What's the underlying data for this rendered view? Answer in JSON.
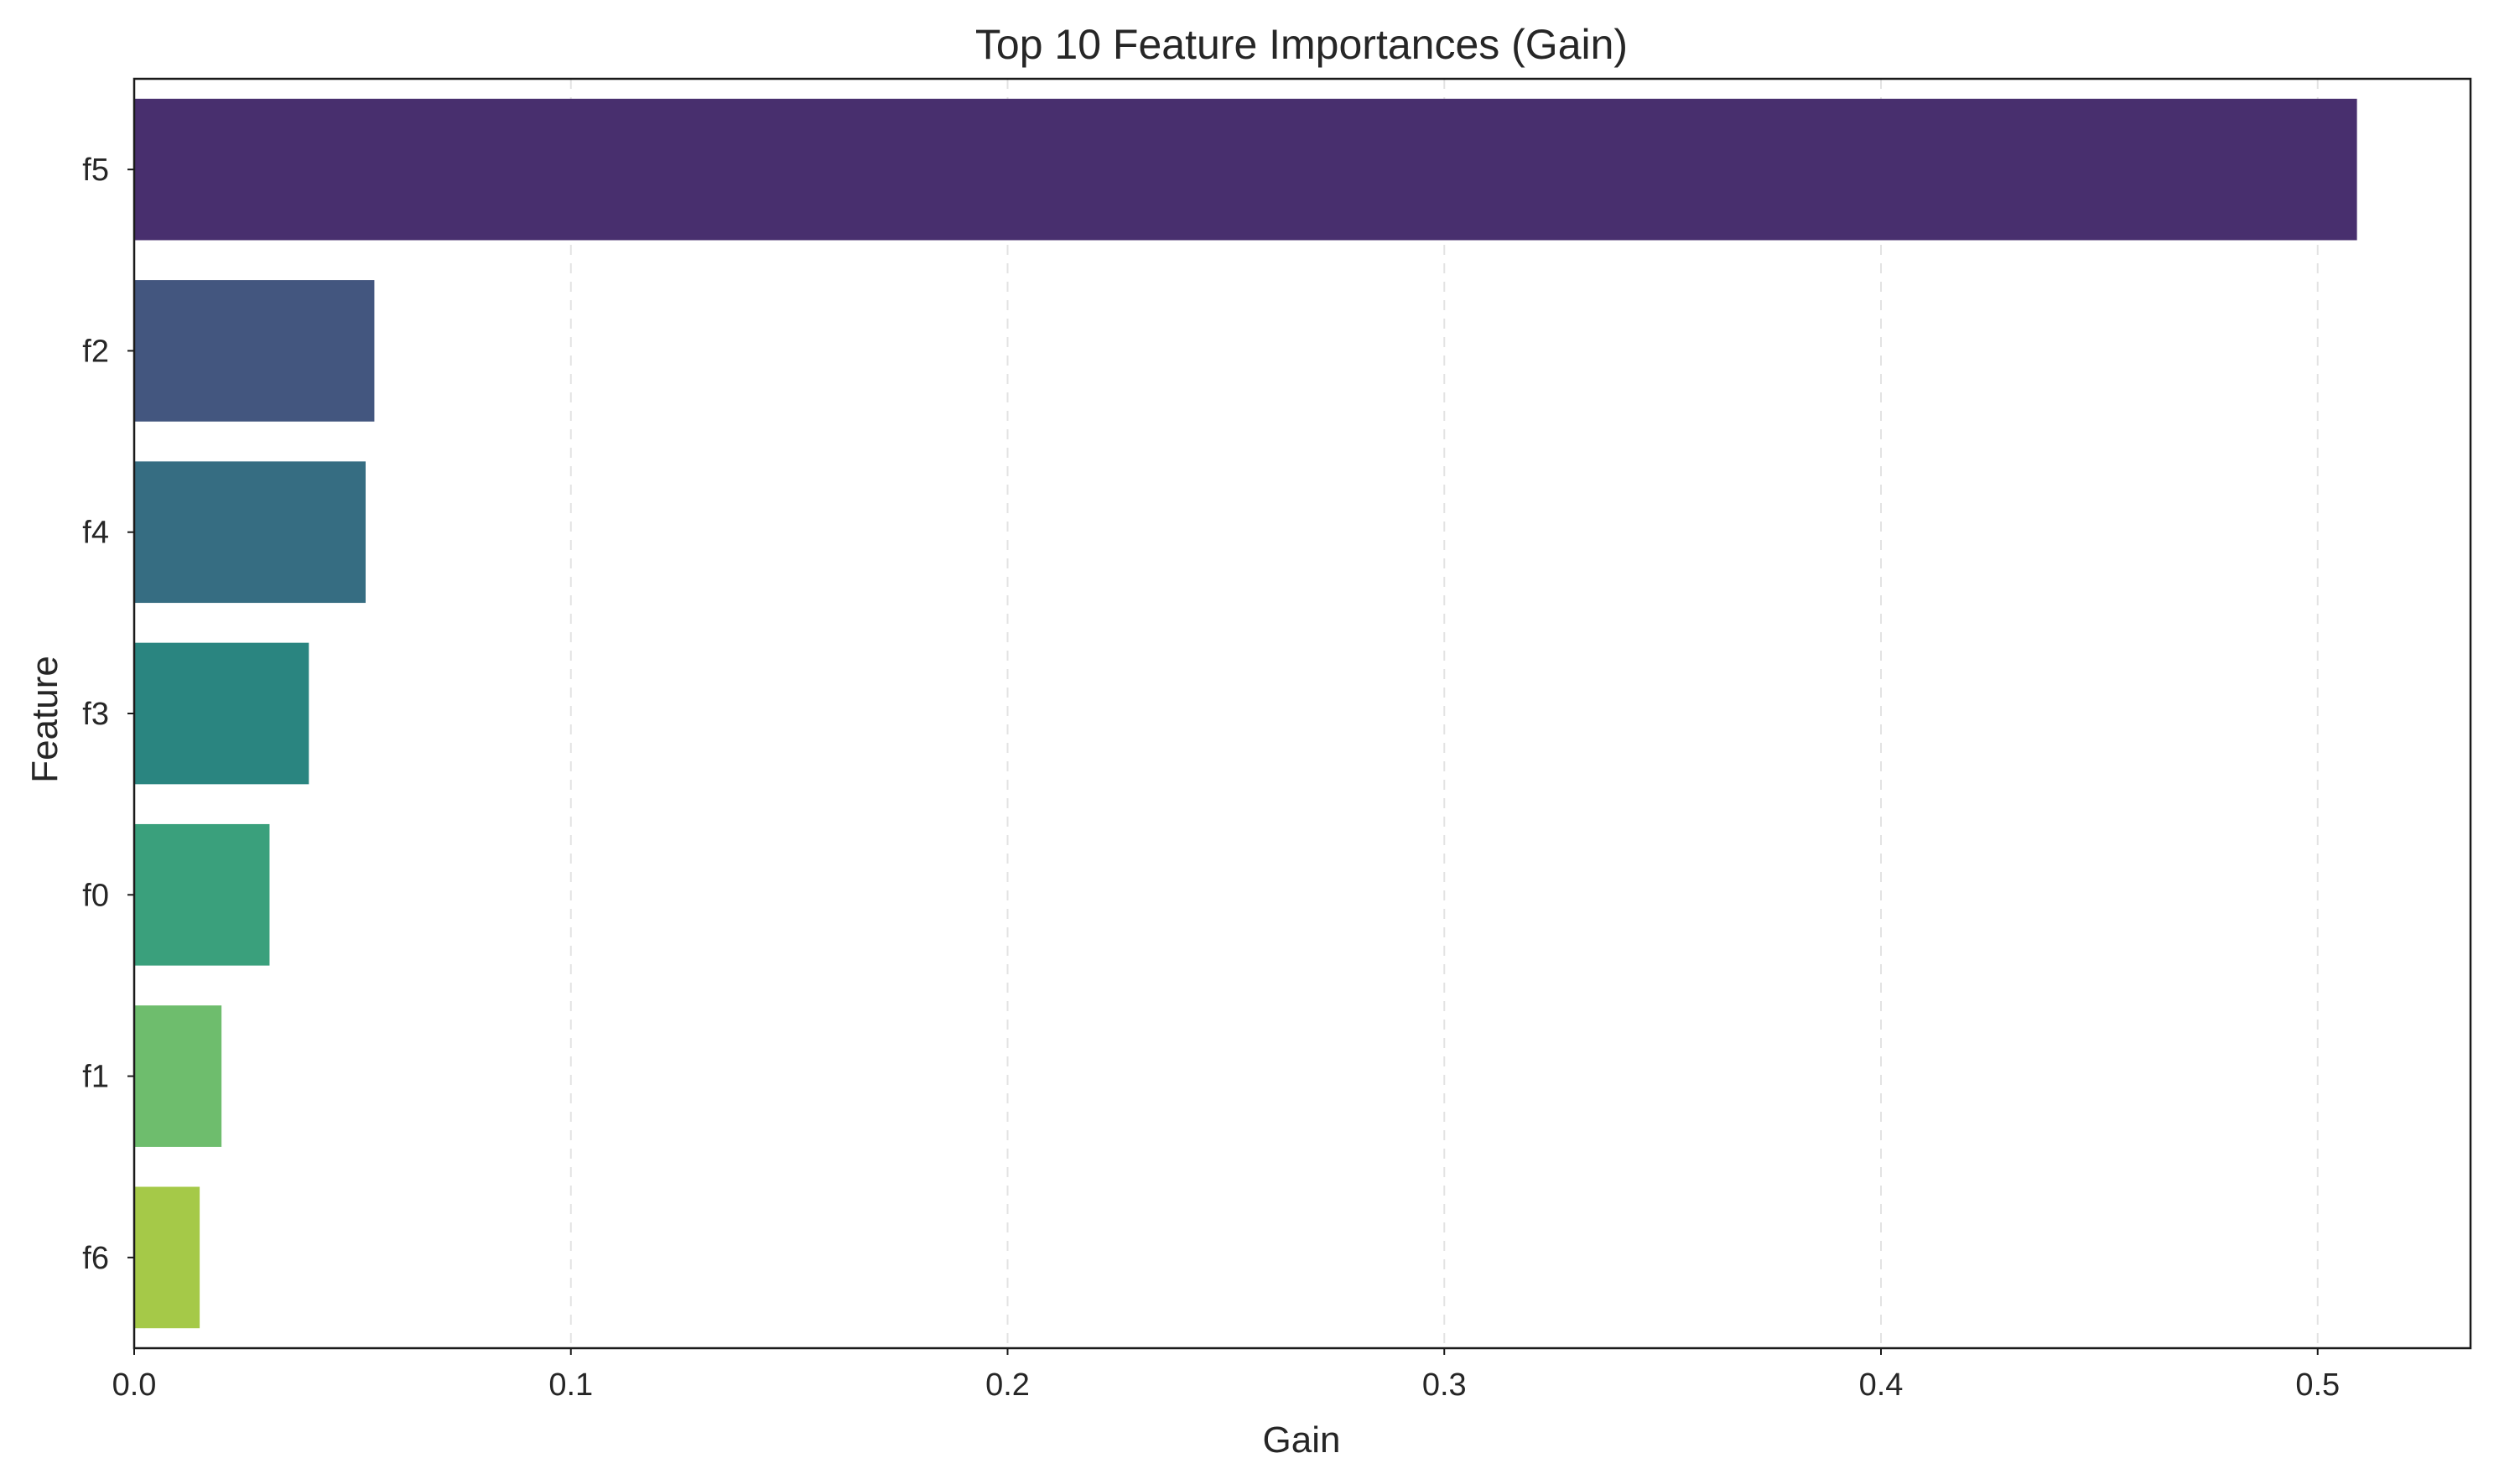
{
  "chart_data": {
    "type": "bar",
    "orientation": "horizontal",
    "title": "Top 10 Feature Importances (Gain)",
    "xlabel": "Gain",
    "ylabel": "Feature",
    "categories": [
      "f5",
      "f2",
      "f4",
      "f3",
      "f0",
      "f1",
      "f6"
    ],
    "values": [
      0.509,
      0.055,
      0.053,
      0.04,
      0.031,
      0.02,
      0.015
    ],
    "colors": [
      "#482f6e",
      "#43567f",
      "#366d82",
      "#2a8580",
      "#3aa07c",
      "#6ebd6d",
      "#a5c948"
    ],
    "xlim": [
      0,
      0.535
    ],
    "xticks": [
      0.0,
      0.1,
      0.2,
      0.3,
      0.4,
      0.5
    ],
    "xtick_labels": [
      "0.0",
      "0.1",
      "0.2",
      "0.3",
      "0.4",
      "0.5"
    ],
    "grid": {
      "x": true,
      "style": "dashed",
      "color": "#e3e3e3"
    },
    "axis_color": "#1a1a1a"
  }
}
